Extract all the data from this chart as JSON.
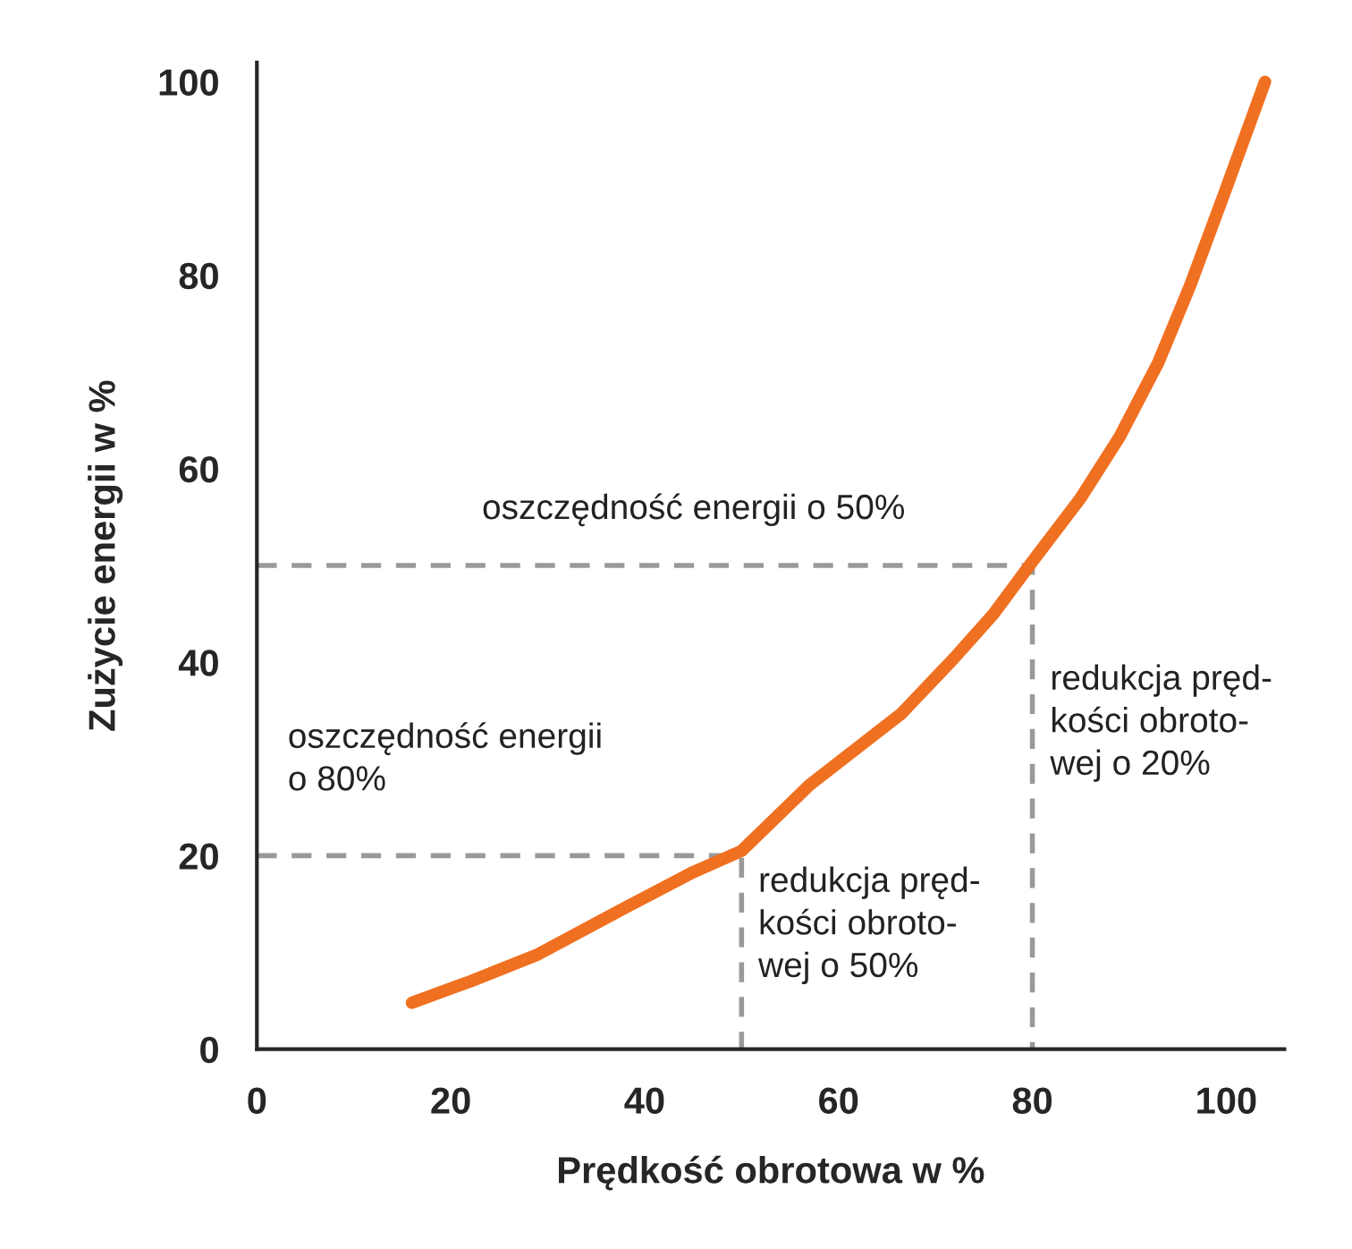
{
  "chart_data": {
    "type": "line",
    "xlabel": "Prędkość obrotowa w %",
    "ylabel": "Zużycie energii w %",
    "xlim": [
      0,
      106
    ],
    "ylim": [
      0,
      102
    ],
    "xticks": [
      0,
      20,
      40,
      60,
      80,
      100
    ],
    "yticks": [
      0,
      20,
      40,
      60,
      80,
      100
    ],
    "grid": false,
    "legend": false,
    "series": [
      {
        "color": "#f07022",
        "line_style": "solid",
        "x": [
          16,
          22,
          29,
          38.5,
          45,
          50,
          57,
          66.5,
          72,
          76,
          80,
          85,
          89,
          93,
          96.3,
          100,
          104
        ],
        "values": [
          4.8,
          7,
          9.8,
          14.9,
          18.3,
          20.5,
          27.3,
          34.7,
          40.5,
          45,
          50.4,
          57,
          63.3,
          71,
          79,
          89,
          100
        ]
      },
      {
        "color": "#999999",
        "line_style": "dashed",
        "x": [
          0,
          80,
          80
        ],
        "values": [
          50,
          50,
          0
        ]
      },
      {
        "color": "#999999",
        "line_style": "dashed",
        "x": [
          0,
          50,
          50
        ],
        "values": [
          20,
          20,
          0
        ]
      }
    ],
    "annotations": [
      "oszczędność energii o 50%",
      "oszczędność energii\no 80%",
      "redukcja pręd-\nkości obroto-\nwej o 50%",
      "redukcja pręd-\nkości obroto-\nwej o 20%"
    ]
  }
}
